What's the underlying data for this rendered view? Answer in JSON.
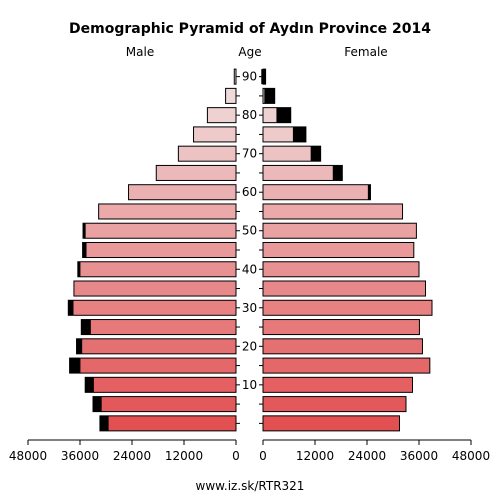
{
  "chart_data": {
    "type": "bar",
    "title": "Demographic Pyramid of Aydın Province 2014",
    "left_label": "Male",
    "center_label": "Age",
    "right_label": "Female",
    "footer": "www.iz.sk/RTR321",
    "xlim": [
      0,
      48000
    ],
    "x_ticks": [
      48000,
      36000,
      24000,
      12000,
      0
    ],
    "x_tick_labels_left": [
      "48000",
      "36000",
      "24000",
      "12000",
      "0"
    ],
    "x_tick_labels_right": [
      "0",
      "12000",
      "24000",
      "36000",
      "48000"
    ],
    "age_groups": [
      "0-4",
      "5-9",
      "10-14",
      "15-19",
      "20-24",
      "25-29",
      "30-34",
      "35-39",
      "40-44",
      "45-49",
      "50-54",
      "55-59",
      "60-64",
      "65-69",
      "70-74",
      "75-79",
      "80-84",
      "85-89",
      "90+"
    ],
    "age_tick_labels": [
      "10",
      "20",
      "30",
      "40",
      "50",
      "60",
      "70",
      "80",
      "90"
    ],
    "age_tick_groups": [
      2,
      4,
      6,
      8,
      10,
      12,
      14,
      16,
      18
    ],
    "series": [
      {
        "name": "Male",
        "values": [
          31400,
          33000,
          34800,
          38400,
          36800,
          35700,
          38700,
          37400,
          36500,
          35400,
          35300,
          31700,
          24800,
          18400,
          13300,
          9800,
          6600,
          2400,
          400
        ],
        "black_values": [
          2000,
          2000,
          2000,
          2500,
          1300,
          2200,
          1200,
          0,
          600,
          900,
          600,
          0,
          0,
          0,
          0,
          0,
          0,
          0,
          0
        ]
      },
      {
        "name": "Female",
        "values": [
          31500,
          33000,
          34500,
          38500,
          36800,
          36100,
          39000,
          37500,
          36000,
          34800,
          35400,
          32200,
          24800,
          18300,
          13300,
          9900,
          6400,
          2700,
          600
        ],
        "black_values": [
          0,
          0,
          0,
          0,
          0,
          0,
          0,
          0,
          0,
          0,
          0,
          0,
          600,
          2200,
          2300,
          3000,
          3300,
          2400,
          1000
        ]
      }
    ],
    "grid": false
  }
}
